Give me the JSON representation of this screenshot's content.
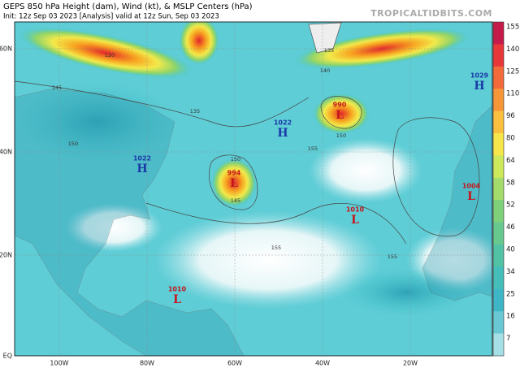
{
  "header": {
    "title": "GEPS 850 hPa Height (dam), Wind (kt), & MSLP Centers (hPa)",
    "subtitle": "Init: 12z Sep 03 2023   [Analysis]   valid at 12z Sun, Sep 03 2023",
    "site": "TROPICALTIDBITS.COM"
  },
  "map": {
    "lat_labels": [
      "60N",
      "40N",
      "20N",
      "EQ"
    ],
    "lon_labels": [
      "100W",
      "80W",
      "60W",
      "40W",
      "20W"
    ],
    "centers": [
      {
        "value": "1022",
        "letter": "H"
      },
      {
        "value": "1022",
        "letter": "H"
      },
      {
        "value": "990",
        "letter": "L"
      },
      {
        "value": "994",
        "letter": "L"
      },
      {
        "value": "1010",
        "letter": "L"
      },
      {
        "value": "1004",
        "letter": "L"
      },
      {
        "value": "1010",
        "letter": "L"
      },
      {
        "value": "1029",
        "letter": "H"
      }
    ],
    "contour_labels": [
      "120",
      "135",
      "145",
      "150",
      "150",
      "155",
      "140",
      "150",
      "155",
      "155",
      "145",
      "135"
    ]
  },
  "colorbar": {
    "labels": [
      "155",
      "140",
      "125",
      "110",
      "96",
      "80",
      "64",
      "58",
      "52",
      "46",
      "40",
      "34",
      "25",
      "16",
      "7"
    ]
  }
}
